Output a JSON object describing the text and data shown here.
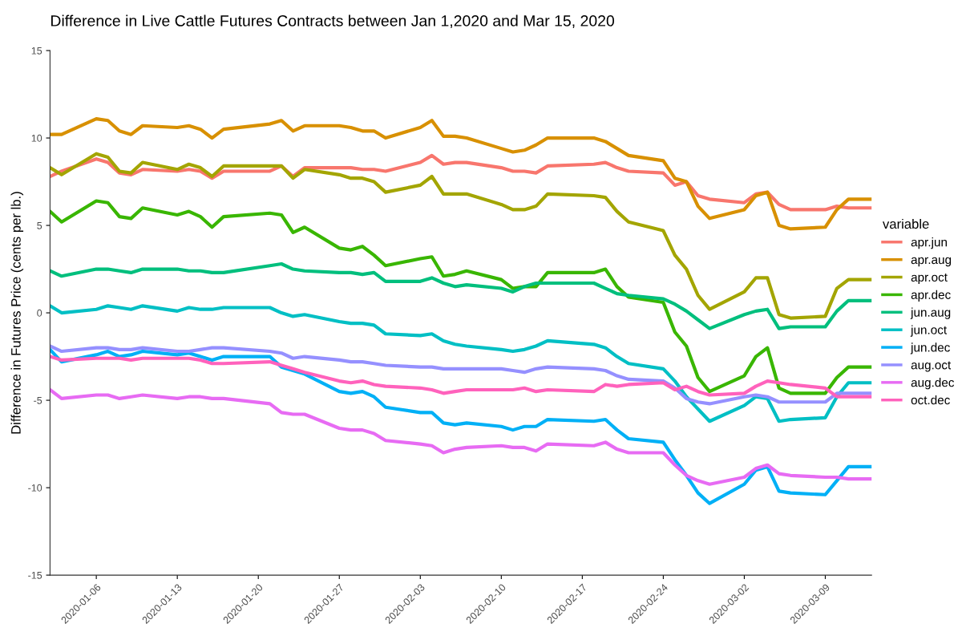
{
  "chart_data": {
    "type": "line",
    "title": "Difference in Live Cattle Futures Contracts between Jan 1,2020 and Mar 15, 2020",
    "ylabel": "Difference in Futures Price (cents per lb.)",
    "legend_title": "variable",
    "legend": "right",
    "grid": false,
    "line_style": "solid",
    "marker": "none",
    "xlim": [
      "2020-01-02",
      "2020-03-13"
    ],
    "xticks": [
      "2020-01-06",
      "2020-01-13",
      "2020-01-20",
      "2020-01-27",
      "2020-02-03",
      "2020-02-10",
      "2020-02-17",
      "2020-02-24",
      "2020-03-02",
      "2020-03-09"
    ],
    "ylim": [
      -15,
      15
    ],
    "yticks": [
      -15,
      -10,
      -5,
      0,
      5,
      10,
      15
    ],
    "x": [
      "2020-01-02",
      "2020-01-03",
      "2020-01-06",
      "2020-01-07",
      "2020-01-08",
      "2020-01-09",
      "2020-01-10",
      "2020-01-13",
      "2020-01-14",
      "2020-01-15",
      "2020-01-16",
      "2020-01-17",
      "2020-01-21",
      "2020-01-22",
      "2020-01-23",
      "2020-01-24",
      "2020-01-27",
      "2020-01-28",
      "2020-01-29",
      "2020-01-30",
      "2020-01-31",
      "2020-02-03",
      "2020-02-04",
      "2020-02-05",
      "2020-02-06",
      "2020-02-07",
      "2020-02-10",
      "2020-02-11",
      "2020-02-12",
      "2020-02-13",
      "2020-02-14",
      "2020-02-18",
      "2020-02-19",
      "2020-02-20",
      "2020-02-21",
      "2020-02-24",
      "2020-02-25",
      "2020-02-26",
      "2020-02-27",
      "2020-02-28",
      "2020-03-02",
      "2020-03-03",
      "2020-03-04",
      "2020-03-05",
      "2020-03-06",
      "2020-03-09",
      "2020-03-10",
      "2020-03-11",
      "2020-03-12",
      "2020-03-13"
    ],
    "series": [
      {
        "name": "apr.jun",
        "color": "#f8766d",
        "values": [
          7.8,
          8.1,
          8.8,
          8.6,
          8.0,
          7.9,
          8.2,
          8.1,
          8.2,
          8.1,
          7.7,
          8.1,
          8.1,
          8.4,
          7.8,
          8.3,
          8.3,
          8.3,
          8.2,
          8.2,
          8.1,
          8.6,
          9.0,
          8.5,
          8.6,
          8.6,
          8.3,
          8.1,
          8.1,
          8.0,
          8.4,
          8.5,
          8.6,
          8.3,
          8.1,
          8.0,
          7.3,
          7.5,
          6.7,
          6.5,
          6.3,
          6.8,
          6.9,
          6.2,
          5.9,
          5.9,
          6.1,
          6.0,
          6.0,
          6.0
        ]
      },
      {
        "name": "apr.aug",
        "color": "#d89000",
        "values": [
          10.2,
          10.2,
          11.1,
          11.0,
          10.4,
          10.2,
          10.7,
          10.6,
          10.7,
          10.5,
          10.0,
          10.5,
          10.8,
          11.0,
          10.4,
          10.7,
          10.7,
          10.6,
          10.4,
          10.4,
          10.0,
          10.6,
          11.0,
          10.1,
          10.1,
          10.0,
          9.4,
          9.2,
          9.3,
          9.6,
          10.0,
          10.0,
          9.8,
          9.4,
          9.0,
          8.7,
          7.7,
          7.5,
          6.1,
          5.4,
          5.9,
          6.7,
          6.9,
          5.0,
          4.8,
          4.9,
          5.9,
          6.5,
          6.5,
          6.5
        ]
      },
      {
        "name": "apr.oct",
        "color": "#a3a500",
        "values": [
          8.3,
          7.9,
          9.1,
          8.9,
          8.1,
          8.0,
          8.6,
          8.2,
          8.5,
          8.3,
          7.8,
          8.4,
          8.4,
          8.4,
          7.7,
          8.2,
          7.9,
          7.7,
          7.7,
          7.5,
          6.9,
          7.3,
          7.8,
          6.8,
          6.8,
          6.8,
          6.2,
          5.9,
          5.9,
          6.1,
          6.8,
          6.7,
          6.6,
          5.8,
          5.2,
          4.7,
          3.3,
          2.5,
          1.0,
          0.2,
          1.2,
          2.0,
          2.0,
          -0.1,
          -0.3,
          -0.2,
          1.4,
          1.9,
          1.9,
          1.9
        ]
      },
      {
        "name": "apr.dec",
        "color": "#39b600",
        "values": [
          5.8,
          5.2,
          6.4,
          6.3,
          5.5,
          5.4,
          6.0,
          5.6,
          5.8,
          5.5,
          4.9,
          5.5,
          5.7,
          5.6,
          4.6,
          4.9,
          3.7,
          3.6,
          3.8,
          3.3,
          2.7,
          3.1,
          3.2,
          2.1,
          2.2,
          2.4,
          1.9,
          1.4,
          1.5,
          1.5,
          2.3,
          2.3,
          2.5,
          1.5,
          0.9,
          0.6,
          -1.1,
          -1.9,
          -3.7,
          -4.5,
          -3.6,
          -2.5,
          -2.0,
          -4.3,
          -4.6,
          -4.6,
          -3.7,
          -3.1,
          -3.1,
          -3.1
        ]
      },
      {
        "name": "jun.aug",
        "color": "#00bf7d",
        "values": [
          2.4,
          2.1,
          2.5,
          2.5,
          2.4,
          2.3,
          2.5,
          2.5,
          2.4,
          2.4,
          2.3,
          2.3,
          2.7,
          2.8,
          2.5,
          2.4,
          2.3,
          2.3,
          2.2,
          2.3,
          1.8,
          1.8,
          2.0,
          1.7,
          1.5,
          1.6,
          1.4,
          1.2,
          1.5,
          1.7,
          1.7,
          1.7,
          1.4,
          1.1,
          1.0,
          0.8,
          0.5,
          0.1,
          -0.4,
          -0.9,
          -0.1,
          0.1,
          0.2,
          -0.9,
          -0.8,
          -0.8,
          0.1,
          0.7,
          0.7,
          0.7
        ]
      },
      {
        "name": "jun.oct",
        "color": "#00bfc4",
        "values": [
          0.4,
          0.0,
          0.2,
          0.4,
          0.3,
          0.2,
          0.4,
          0.1,
          0.3,
          0.2,
          0.2,
          0.3,
          0.3,
          0.0,
          -0.2,
          -0.1,
          -0.5,
          -0.6,
          -0.6,
          -0.7,
          -1.2,
          -1.3,
          -1.2,
          -1.6,
          -1.8,
          -1.9,
          -2.1,
          -2.2,
          -2.1,
          -1.9,
          -1.6,
          -1.8,
          -2.0,
          -2.5,
          -2.9,
          -3.2,
          -3.9,
          -4.8,
          -5.5,
          -6.2,
          -5.3,
          -4.8,
          -4.9,
          -6.2,
          -6.1,
          -6.0,
          -4.8,
          -4.0,
          -4.0,
          -4.0
        ]
      },
      {
        "name": "jun.dec",
        "color": "#00b0f6",
        "values": [
          -2.1,
          -2.8,
          -2.4,
          -2.2,
          -2.5,
          -2.4,
          -2.2,
          -2.4,
          -2.3,
          -2.5,
          -2.7,
          -2.5,
          -2.5,
          -3.1,
          -3.3,
          -3.5,
          -4.5,
          -4.6,
          -4.5,
          -4.8,
          -5.4,
          -5.7,
          -5.7,
          -6.3,
          -6.4,
          -6.3,
          -6.5,
          -6.7,
          -6.5,
          -6.5,
          -6.1,
          -6.2,
          -6.1,
          -6.7,
          -7.2,
          -7.4,
          -8.4,
          -9.3,
          -10.3,
          -10.9,
          -9.8,
          -9.0,
          -8.8,
          -10.2,
          -10.3,
          -10.4,
          -9.6,
          -8.8,
          -8.8,
          -8.8
        ]
      },
      {
        "name": "aug.oct",
        "color": "#9590ff",
        "values": [
          -1.9,
          -2.2,
          -2.0,
          -2.0,
          -2.1,
          -2.1,
          -2.0,
          -2.2,
          -2.2,
          -2.1,
          -2.0,
          -2.0,
          -2.2,
          -2.3,
          -2.6,
          -2.5,
          -2.7,
          -2.8,
          -2.8,
          -2.9,
          -3.0,
          -3.1,
          -3.1,
          -3.2,
          -3.2,
          -3.2,
          -3.2,
          -3.3,
          -3.4,
          -3.2,
          -3.1,
          -3.2,
          -3.3,
          -3.6,
          -3.8,
          -3.9,
          -4.3,
          -4.9,
          -5.1,
          -5.2,
          -4.8,
          -4.7,
          -4.8,
          -5.1,
          -5.1,
          -5.1,
          -4.6,
          -4.6,
          -4.6,
          -4.6
        ]
      },
      {
        "name": "aug.dec",
        "color": "#e76bf3",
        "values": [
          -4.4,
          -4.9,
          -4.7,
          -4.7,
          -4.9,
          -4.8,
          -4.7,
          -4.9,
          -4.8,
          -4.8,
          -4.9,
          -4.9,
          -5.2,
          -5.7,
          -5.8,
          -5.8,
          -6.6,
          -6.7,
          -6.7,
          -6.9,
          -7.3,
          -7.5,
          -7.6,
          -8.0,
          -7.8,
          -7.7,
          -7.6,
          -7.7,
          -7.7,
          -7.9,
          -7.5,
          -7.6,
          -7.4,
          -7.8,
          -8.0,
          -8.0,
          -8.7,
          -9.3,
          -9.6,
          -9.8,
          -9.4,
          -8.9,
          -8.7,
          -9.2,
          -9.3,
          -9.4,
          -9.4,
          -9.5,
          -9.5,
          -9.5
        ]
      },
      {
        "name": "oct.dec",
        "color": "#ff62bc",
        "values": [
          -2.5,
          -2.7,
          -2.6,
          -2.6,
          -2.6,
          -2.7,
          -2.6,
          -2.6,
          -2.6,
          -2.7,
          -2.9,
          -2.9,
          -2.8,
          -3.0,
          -3.2,
          -3.4,
          -3.9,
          -4.0,
          -3.9,
          -4.1,
          -4.2,
          -4.3,
          -4.4,
          -4.6,
          -4.5,
          -4.4,
          -4.4,
          -4.4,
          -4.3,
          -4.5,
          -4.4,
          -4.5,
          -4.1,
          -4.2,
          -4.1,
          -4.0,
          -4.4,
          -4.2,
          -4.5,
          -4.7,
          -4.6,
          -4.2,
          -3.9,
          -4.0,
          -4.1,
          -4.3,
          -4.8,
          -4.8,
          -4.8,
          -4.8
        ]
      }
    ]
  }
}
